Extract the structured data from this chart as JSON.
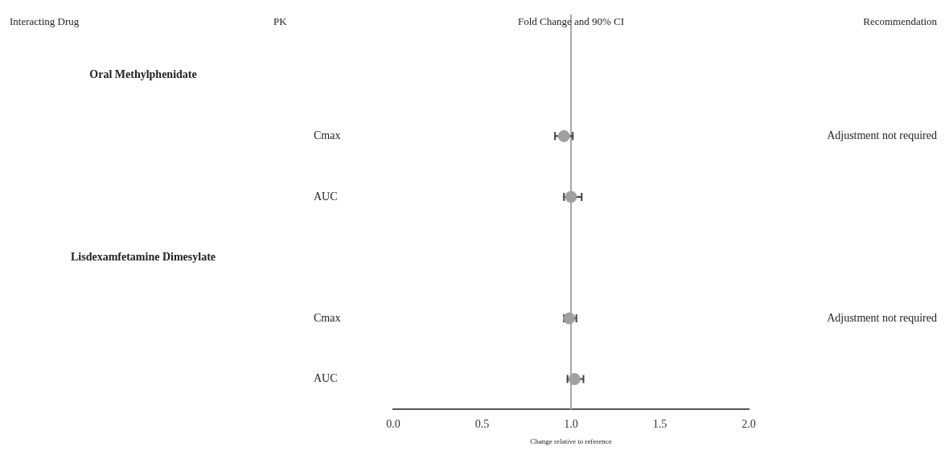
{
  "chart_data": {
    "type": "scatter",
    "orientation": "horizontal",
    "categories": [
      null,
      "Cmax",
      "AUC",
      null,
      "Cmax",
      "AUC"
    ],
    "y2_categories": [
      null,
      "Adjustment not required",
      null,
      null,
      "Adjustment not required",
      null
    ],
    "values": [
      null,
      0.96,
      1.0,
      null,
      0.99,
      1.02
    ],
    "errors": [
      null,
      [
        0.91,
        1.01
      ],
      [
        0.96,
        1.06
      ],
      null,
      [
        0.96,
        1.03
      ],
      [
        0.98,
        1.07
      ]
    ],
    "color": "#a0a0a0",
    "marker": "circle",
    "xlim": [
      0,
      2
    ],
    "xticks": [
      {
        "value": 0,
        "label": "0.0"
      },
      {
        "value": 0.5,
        "label": "0.5"
      },
      {
        "value": 1,
        "label": "1.0"
      },
      {
        "value": 1.5,
        "label": "1.5"
      },
      {
        "value": 2,
        "label": "2.0"
      }
    ],
    "xlabel": "Change relative to reference",
    "ref_lines": [
      {
        "axis": "x",
        "value": 1,
        "color": "#a8a8a8"
      }
    ],
    "annotations": [
      "Interacting Drug",
      "PK",
      "Fold Change and 90% CI",
      "Recommendation",
      "Oral Methylphenidate",
      "Lisdexamfetamine Dimesylate"
    ],
    "grid": false,
    "legend": false
  }
}
